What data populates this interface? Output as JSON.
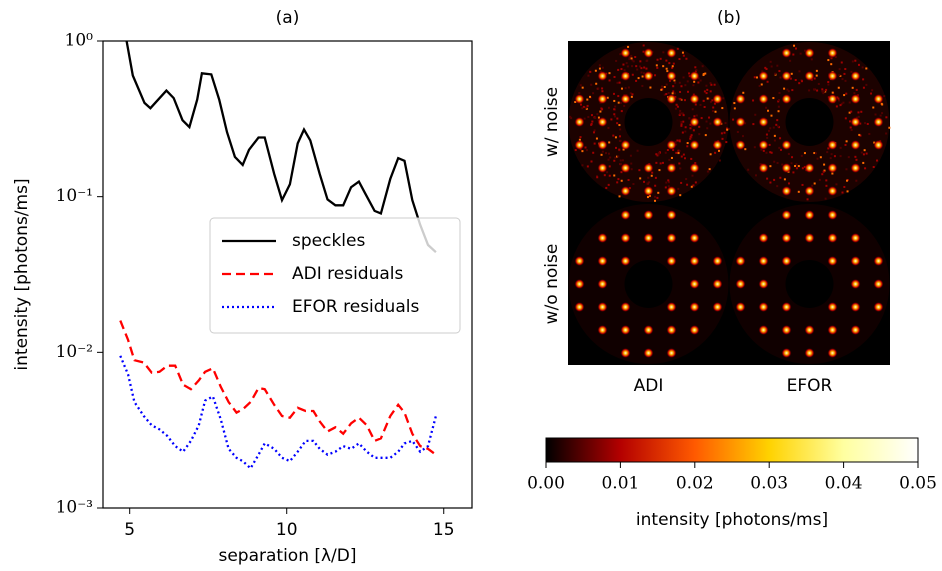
{
  "chart_data": [
    {
      "type": "line",
      "title": "(a)",
      "x_label": "separation [λ/D]",
      "y_label": "intensity [photons/ms]",
      "log_y": true,
      "xlim": [
        4.15,
        15.9
      ],
      "ylim": [
        0.001,
        1
      ],
      "xticks": [
        5,
        10,
        15
      ],
      "yticks": [
        {
          "value": 0.001,
          "label": "10⁻³"
        },
        {
          "value": 0.01,
          "label": "10⁻²"
        },
        {
          "value": 0.1,
          "label": "10⁻¹"
        },
        {
          "value": 1,
          "label": "10⁰"
        }
      ],
      "legend": "center right",
      "series": [
        {
          "name": "speckles",
          "color": "#000000",
          "style": "solid",
          "x": [
            4.9,
            5.1,
            5.47,
            5.66,
            6.17,
            6.4,
            6.68,
            6.9,
            7.15,
            7.3,
            7.6,
            7.85,
            8.1,
            8.35,
            8.6,
            8.8,
            9.1,
            9.3,
            9.6,
            9.85,
            10.1,
            10.35,
            10.55,
            10.75,
            11.05,
            11.3,
            11.55,
            11.8,
            12.05,
            12.3,
            12.5,
            12.8,
            13.0,
            13.3,
            13.55,
            13.75,
            14.0,
            14.25,
            14.5,
            14.75
          ],
          "values": [
            1.0,
            0.6,
            0.4,
            0.37,
            0.48,
            0.43,
            0.31,
            0.28,
            0.42,
            0.62,
            0.61,
            0.42,
            0.26,
            0.18,
            0.16,
            0.2,
            0.24,
            0.24,
            0.14,
            0.095,
            0.12,
            0.22,
            0.27,
            0.23,
            0.14,
            0.096,
            0.088,
            0.088,
            0.115,
            0.125,
            0.105,
            0.081,
            0.078,
            0.13,
            0.177,
            0.17,
            0.095,
            0.066,
            0.049,
            0.044
          ]
        },
        {
          "name": "ADI residuals",
          "color": "#ff0000",
          "style": "dashed",
          "x": [
            4.7,
            4.95,
            5.15,
            5.45,
            5.7,
            5.95,
            6.2,
            6.45,
            6.7,
            6.95,
            7.2,
            7.4,
            7.65,
            7.9,
            8.15,
            8.4,
            8.6,
            8.85,
            9.1,
            9.3,
            9.6,
            9.85,
            10.1,
            10.35,
            10.6,
            10.85,
            11.05,
            11.3,
            11.55,
            11.8,
            12.05,
            12.3,
            12.55,
            12.8,
            13.0,
            13.3,
            13.55,
            13.75,
            14.0,
            14.25,
            14.5,
            14.75
          ],
          "values": [
            0.016,
            0.012,
            0.0089,
            0.0086,
            0.0074,
            0.0075,
            0.0082,
            0.0082,
            0.0062,
            0.0058,
            0.0066,
            0.0075,
            0.0079,
            0.006,
            0.0048,
            0.0041,
            0.0043,
            0.0048,
            0.0059,
            0.0058,
            0.0046,
            0.0039,
            0.0038,
            0.0044,
            0.0042,
            0.0042,
            0.0036,
            0.0031,
            0.0033,
            0.003,
            0.0035,
            0.0038,
            0.0034,
            0.0027,
            0.0028,
            0.0039,
            0.0046,
            0.0041,
            0.003,
            0.0025,
            0.0024,
            0.0022
          ]
        },
        {
          "name": "EFOR residuals",
          "color": "#0000ff",
          "style": "dotted",
          "x": [
            4.7,
            4.95,
            5.15,
            5.45,
            5.7,
            5.95,
            6.2,
            6.45,
            6.7,
            6.95,
            7.2,
            7.4,
            7.65,
            7.9,
            8.15,
            8.4,
            8.6,
            8.85,
            9.1,
            9.3,
            9.6,
            9.85,
            10.1,
            10.35,
            10.6,
            10.85,
            11.05,
            11.3,
            11.55,
            11.8,
            12.05,
            12.3,
            12.55,
            12.8,
            13.0,
            13.3,
            13.55,
            13.75,
            14.0,
            14.25,
            14.5,
            14.75
          ],
          "values": [
            0.0095,
            0.0072,
            0.0048,
            0.0039,
            0.0034,
            0.0032,
            0.0029,
            0.0025,
            0.0023,
            0.0027,
            0.0034,
            0.0049,
            0.0052,
            0.0037,
            0.0024,
            0.0021,
            0.002,
            0.0018,
            0.0022,
            0.0026,
            0.0024,
            0.0021,
            0.002,
            0.0023,
            0.0027,
            0.0027,
            0.0024,
            0.0022,
            0.0023,
            0.0025,
            0.0024,
            0.0026,
            0.0023,
            0.0021,
            0.0021,
            0.0021,
            0.0023,
            0.0026,
            0.0027,
            0.0023,
            0.0025,
            0.0039
          ]
        }
      ]
    },
    {
      "type": "image",
      "title": "(b)",
      "row_labels": [
        "w/ noise",
        "w/o noise"
      ],
      "col_labels": [
        "ADI",
        "EFOR"
      ],
      "colorbar": {
        "label": "intensity [photons/ms]",
        "lim": [
          0,
          0.05
        ],
        "ticks": [
          {
            "value": 0,
            "label": "0.00"
          },
          {
            "value": 0.01,
            "label": "0.01"
          },
          {
            "value": 0.02,
            "label": "0.02"
          },
          {
            "value": 0.03,
            "label": "0.03"
          },
          {
            "value": 0.04,
            "label": "0.04"
          },
          {
            "value": 0.05,
            "label": "0.05"
          }
        ],
        "colors": [
          "#000000",
          "#b40000",
          "#ff5a00",
          "#ffd200",
          "#ffffa0",
          "#ffffff"
        ]
      }
    }
  ]
}
